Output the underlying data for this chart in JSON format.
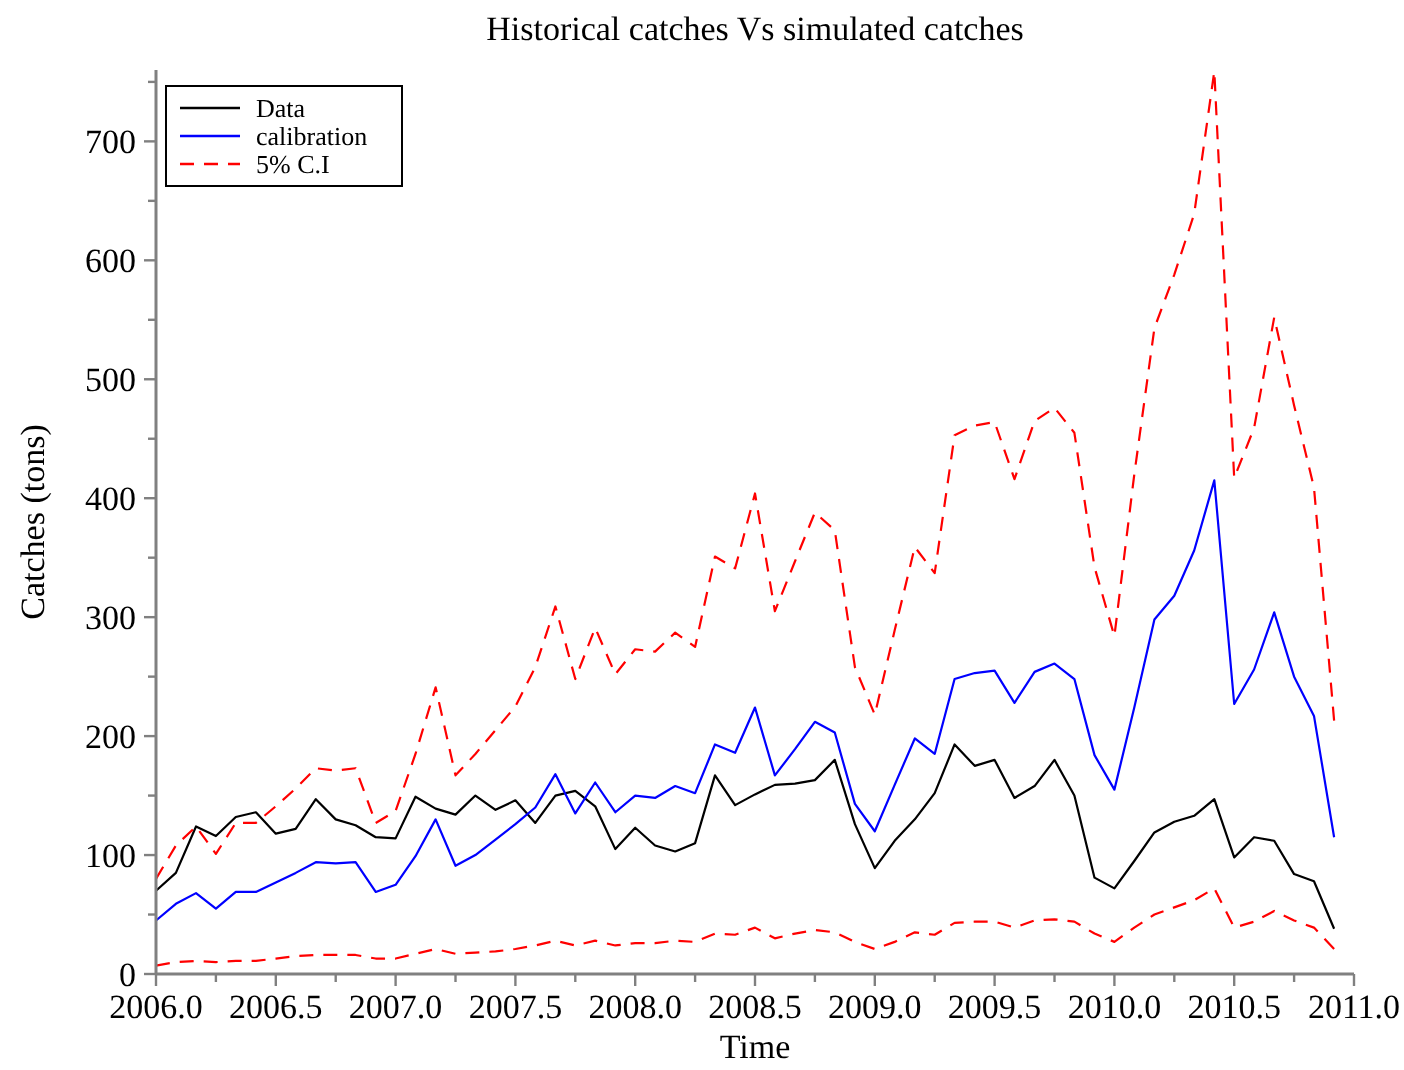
{
  "chart_data": {
    "type": "line",
    "title": "Historical catches Vs simulated catches",
    "xlabel": "Time",
    "ylabel": "Catches (tons)",
    "x": [
      2006,
      2006.083,
      2006.167,
      2006.25,
      2006.333,
      2006.417,
      2006.5,
      2006.583,
      2006.667,
      2006.75,
      2006.833,
      2006.917,
      2007,
      2007.083,
      2007.167,
      2007.25,
      2007.333,
      2007.417,
      2007.5,
      2007.583,
      2007.667,
      2007.75,
      2007.833,
      2007.917,
      2008,
      2008.083,
      2008.167,
      2008.25,
      2008.333,
      2008.417,
      2008.5,
      2008.583,
      2008.667,
      2008.75,
      2008.833,
      2008.917,
      2009,
      2009.083,
      2009.167,
      2009.25,
      2009.333,
      2009.417,
      2009.5,
      2009.583,
      2009.667,
      2009.75,
      2009.833,
      2009.917,
      2010,
      2010.083,
      2010.167,
      2010.25,
      2010.333,
      2010.417,
      2010.5,
      2010.583,
      2010.667,
      2010.75,
      2010.833,
      2010.917
    ],
    "series": [
      {
        "name": "Data",
        "color": "#000000",
        "line_style": "solid",
        "values": [
          70,
          85,
          124,
          116,
          132,
          136,
          118,
          122,
          147,
          130,
          125,
          115,
          114,
          149,
          139,
          134,
          150,
          138,
          146,
          127,
          150,
          154,
          141,
          105,
          123,
          108,
          103,
          110,
          167,
          142,
          151,
          159,
          160,
          163,
          180,
          126,
          89,
          112,
          130,
          152,
          193,
          175,
          180,
          148,
          158,
          180,
          150,
          81,
          72,
          95,
          119,
          128,
          133,
          147,
          98,
          115,
          112,
          84,
          78,
          38
        ]
      },
      {
        "name": "calibration",
        "color": "#0000ff",
        "line_style": "solid",
        "values": [
          45,
          59,
          68,
          55,
          69,
          69,
          77,
          85,
          94,
          93,
          94,
          69,
          75,
          99,
          130,
          91,
          100,
          113,
          126,
          140,
          168,
          135,
          161,
          136,
          150,
          148,
          158,
          152,
          193,
          186,
          224,
          167,
          189,
          212,
          203,
          143,
          120,
          159,
          198,
          185,
          248,
          253,
          255,
          228,
          254,
          261,
          248,
          184,
          155,
          224,
          298,
          318,
          356,
          415,
          227,
          256,
          304,
          250,
          217,
          115
        ]
      },
      {
        "name": "5% C.I",
        "color": "#ff0000",
        "line_style": "dashed",
        "values": [
          80,
          108,
          124,
          101,
          127,
          127,
          141,
          156,
          173,
          171,
          173,
          127,
          137,
          185,
          241,
          167,
          185,
          205,
          225,
          258,
          309,
          248,
          291,
          252,
          273,
          271,
          287,
          275,
          351,
          341,
          404,
          305,
          347,
          388,
          373,
          258,
          218,
          289,
          359,
          337,
          453,
          461,
          464,
          416,
          465,
          476,
          455,
          342,
          284,
          420,
          543,
          588,
          639,
          759,
          417,
          459,
          552,
          478,
          409,
          213
        ]
      },
      {
        "color": "#ff0000",
        "line_style": "dashed",
        "values": [
          7,
          10,
          11,
          10,
          11,
          11,
          13,
          15,
          16,
          16,
          16,
          13,
          13,
          17,
          21,
          17,
          18,
          19,
          21,
          24,
          28,
          24,
          28,
          24,
          26,
          26,
          28,
          27,
          34,
          33,
          39,
          30,
          34,
          37,
          35,
          27,
          21,
          27,
          35,
          33,
          43,
          44,
          44,
          39,
          45,
          46,
          44,
          34,
          27,
          39,
          50,
          56,
          62,
          72,
          39,
          44,
          53,
          45,
          39,
          21
        ]
      }
    ],
    "xlim": [
      2006,
      2011
    ],
    "xticks": [
      {
        "value": 2006,
        "label": "2006.0"
      },
      {
        "value": 2006.25,
        "label": null
      },
      {
        "value": 2006.5,
        "label": "2006.5"
      },
      {
        "value": 2006.75,
        "label": null
      },
      {
        "value": 2007,
        "label": "2007.0"
      },
      {
        "value": 2007.25,
        "label": null
      },
      {
        "value": 2007.5,
        "label": "2007.5"
      },
      {
        "value": 2007.75,
        "label": null
      },
      {
        "value": 2008,
        "label": "2008.0"
      },
      {
        "value": 2008.25,
        "label": null
      },
      {
        "value": 2008.5,
        "label": "2008.5"
      },
      {
        "value": 2008.75,
        "label": null
      },
      {
        "value": 2009,
        "label": "2009.0"
      },
      {
        "value": 2009.25,
        "label": null
      },
      {
        "value": 2009.5,
        "label": "2009.5"
      },
      {
        "value": 2009.75,
        "label": null
      },
      {
        "value": 2010,
        "label": "2010.0"
      },
      {
        "value": 2010.25,
        "label": null
      },
      {
        "value": 2010.5,
        "label": "2010.5"
      },
      {
        "value": 2010.75,
        "label": null
      },
      {
        "value": 2011,
        "label": "2011.0"
      }
    ],
    "ylim": [
      0,
      760
    ],
    "yticks": [
      0,
      {
        "value": 50,
        "label": null
      },
      100,
      {
        "value": 150,
        "label": null
      },
      200,
      {
        "value": 250,
        "label": null
      },
      300,
      {
        "value": 350,
        "label": null
      },
      400,
      {
        "value": 450,
        "label": null
      },
      500,
      {
        "value": 550,
        "label": null
      },
      600,
      {
        "value": 650,
        "label": null
      },
      700,
      {
        "value": 750,
        "label": null
      }
    ],
    "legend": "top left"
  }
}
